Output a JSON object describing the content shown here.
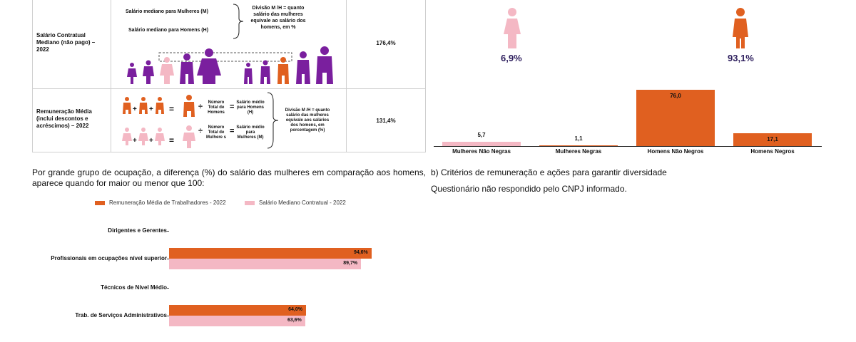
{
  "table": {
    "row1": {
      "label": "Salário Contratual Mediano (não pago) – 2022",
      "women_text": "Salário mediano para Mulheres (M)",
      "men_text": "Salário mediano para Homens (H)",
      "division_text": "Divisão M /H = quanto salário das mulheres equivale ao salário dos homens, em %",
      "value": "176,4%"
    },
    "row2": {
      "label": "Remuneração Média (inclui descontos e acréscimos) – 2022",
      "men_count": "Número Total de Homens",
      "men_avg": "Salário médio para Homens (H)",
      "women_count": "Número Total de Mulhere s",
      "women_avg": "Salário médio para Mulheres (M)",
      "division_text": "Divisão M /H = quanto salário das mulheres equivale aos salários dos homens, em porcentagem (%)",
      "value": "131,4%"
    }
  },
  "gender_split": {
    "women_pct": "6,9%",
    "men_pct": "93,1%"
  },
  "colors": {
    "orange": "#e06020",
    "pink": "#f4b8c4",
    "purple": "#7a1f9e",
    "navy": "#2e1f5e"
  },
  "group_chart": {
    "chart_data": {
      "type": "bar",
      "categories": [
        "Mulheres Não Negras",
        "Mulheres Negras",
        "Homens Não Negros",
        "Homens Negros"
      ],
      "values": [
        5.7,
        1.1,
        76.0,
        17.1
      ],
      "value_labels": [
        "5,7",
        "1,1",
        "76,0",
        "17,1"
      ],
      "ylim": [
        0,
        80
      ]
    }
  },
  "text": {
    "left_para": "Por grande grupo de ocupação, a diferença (%) do salário das mulheres em comparação aos homens, aparece quando for maior ou menor que 100:",
    "right_heading": "b) Critérios de remuneração e ações para garantir diversidade",
    "right_note": "Questionário não respondido pelo CNPJ informado."
  },
  "occupation_chart": {
    "chart_data": {
      "type": "bar",
      "orientation": "horizontal",
      "categories": [
        "Dirigentes e Gerentes",
        "Profissionais em ocupações nível superior",
        "Técnicos de Nível Médio",
        "Trab. de Serviços Administrativos"
      ],
      "series": [
        {
          "name": "Remuneração Média de Trabalhadores - 2022",
          "values": [
            null,
            94.6,
            null,
            64.0
          ],
          "labels": [
            "",
            "94,6%",
            "",
            "64,0%"
          ]
        },
        {
          "name": "Salário Mediano Contratual - 2022",
          "values": [
            null,
            89.7,
            null,
            63.6
          ],
          "labels": [
            "",
            "89,7%",
            "",
            "63,6%"
          ]
        }
      ],
      "xlim": [
        0,
        100
      ]
    }
  }
}
